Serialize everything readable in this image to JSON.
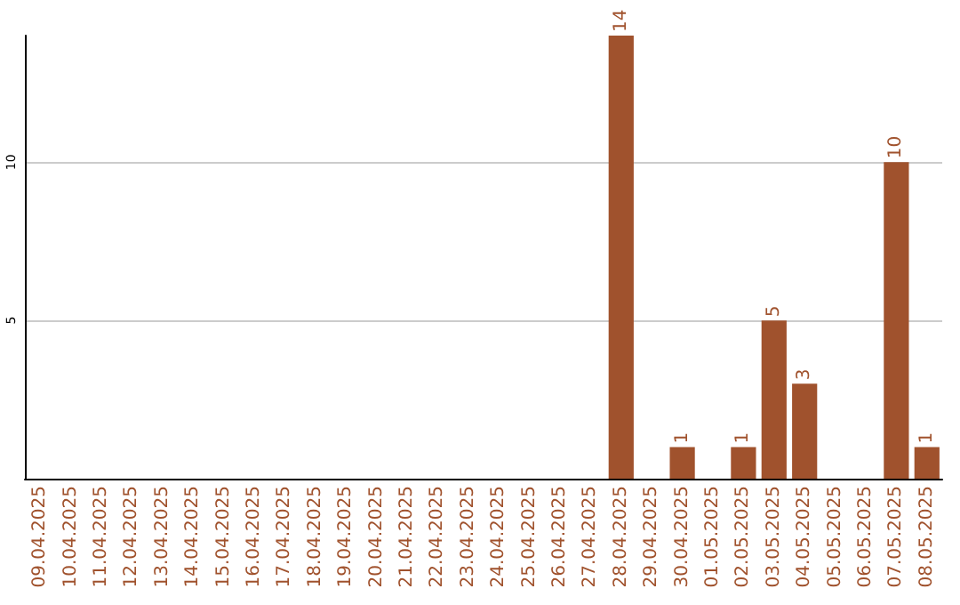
{
  "chart_data": {
    "type": "bar",
    "categories": [
      "09.04.2025",
      "10.04.2025",
      "11.04.2025",
      "12.04.2025",
      "13.04.2025",
      "14.04.2025",
      "15.04.2025",
      "16.04.2025",
      "17.04.2025",
      "18.04.2025",
      "19.04.2025",
      "20.04.2025",
      "21.04.2025",
      "22.04.2025",
      "23.04.2025",
      "24.04.2025",
      "25.04.2025",
      "26.04.2025",
      "27.04.2025",
      "28.04.2025",
      "29.04.2025",
      "30.04.2025",
      "01.05.2025",
      "02.05.2025",
      "03.05.2025",
      "04.05.2025",
      "05.05.2025",
      "06.05.2025",
      "07.05.2025",
      "08.05.2025"
    ],
    "values": [
      0,
      0,
      0,
      0,
      0,
      0,
      0,
      0,
      0,
      0,
      0,
      0,
      0,
      0,
      0,
      0,
      0,
      0,
      0,
      14,
      0,
      1,
      0,
      1,
      5,
      3,
      0,
      0,
      10,
      1
    ],
    "value_labels": [
      null,
      null,
      null,
      null,
      null,
      null,
      null,
      null,
      null,
      null,
      null,
      null,
      null,
      null,
      null,
      null,
      null,
      null,
      null,
      "14",
      null,
      "1",
      null,
      "1",
      "5",
      "3",
      null,
      null,
      "10",
      "1"
    ],
    "color": "#a0522d",
    "ylim": [
      0,
      14
    ],
    "yticks": [
      5,
      10
    ],
    "grid": "y"
  }
}
